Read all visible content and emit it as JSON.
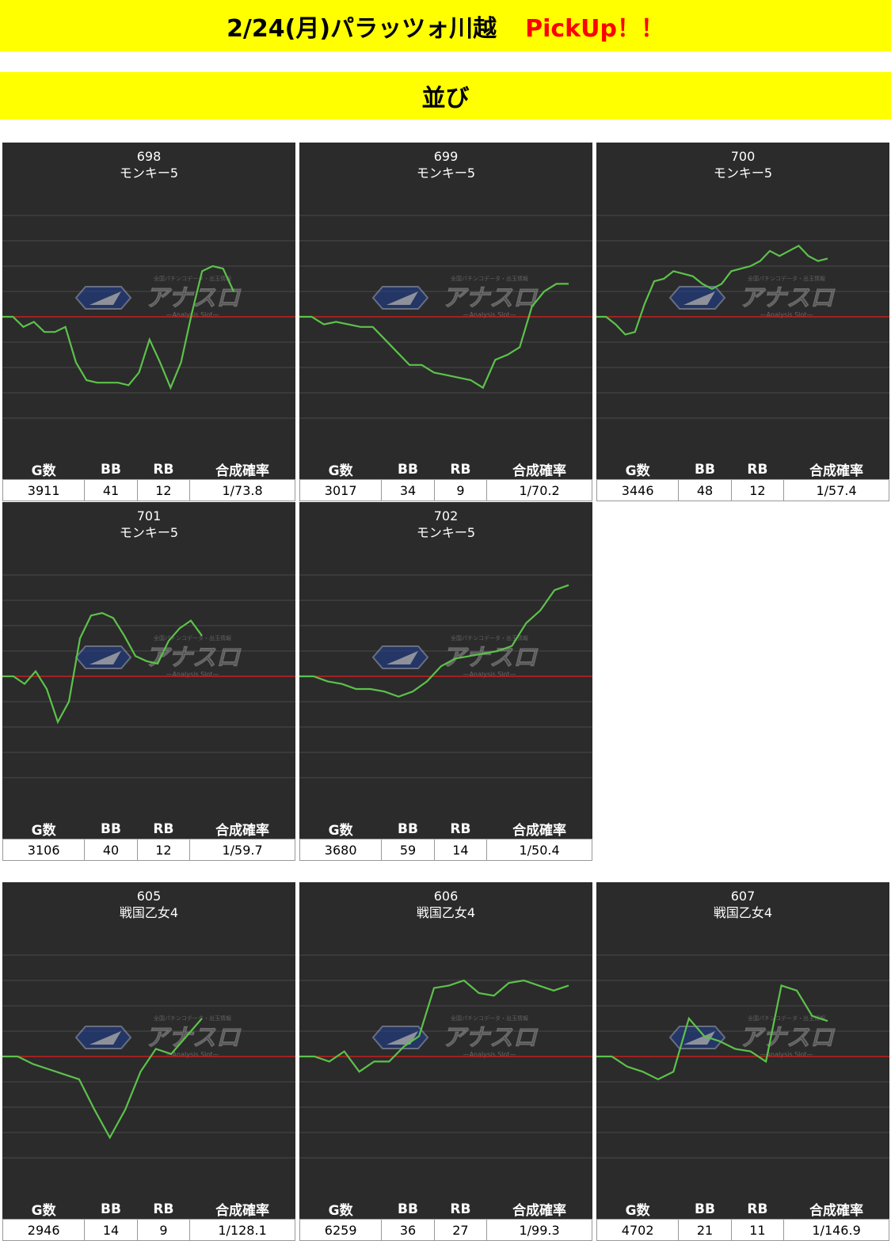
{
  "header": {
    "title": "2/24(月)パラッツォ川越",
    "pickup": "PickUp！！",
    "subtitle": "並び"
  },
  "table_headers": [
    "G数",
    "BB",
    "RB",
    "合成確率"
  ],
  "watermark": {
    "main": "アナスロ",
    "sub": "—Analysis Slot—",
    "top": "全国パチンコデータ・出玉情報"
  },
  "colors": {
    "banner": "#ffff00",
    "pickup": "#ff0000",
    "panel": "#2b2b2b",
    "line": "#5cc24a",
    "baseline": "#c8201e"
  },
  "machines": [
    {
      "num": "698",
      "model": "モンキー5",
      "games": "3911",
      "bb": "41",
      "rb": "12",
      "rate": "1/73.8",
      "chart_data": {
        "type": "line",
        "ylim": [
          -5,
          5
        ],
        "values": [
          0,
          0,
          -0.4,
          -0.2,
          -0.6,
          -0.6,
          -0.4,
          -1.8,
          -2.5,
          -2.6,
          -2.6,
          -2.6,
          -2.7,
          -2.2,
          -0.9,
          -1.8,
          -2.8,
          -1.8,
          0.1,
          1.8,
          2.0,
          1.9,
          1.0
        ]
      }
    },
    {
      "num": "699",
      "model": "モンキー5",
      "games": "3017",
      "bb": "34",
      "rb": "9",
      "rate": "1/70.2",
      "chart_data": {
        "type": "line",
        "ylim": [
          -5,
          5
        ],
        "values": [
          0,
          0,
          -0.3,
          -0.2,
          -0.3,
          -0.4,
          -0.4,
          -0.9,
          -1.4,
          -1.9,
          -1.9,
          -2.2,
          -2.3,
          -2.4,
          -2.5,
          -2.8,
          -1.7,
          -1.5,
          -1.2,
          0.4,
          1.0,
          1.3,
          1.3
        ]
      }
    },
    {
      "num": "700",
      "model": "モンキー5",
      "games": "3446",
      "bb": "48",
      "rb": "12",
      "rate": "1/57.4",
      "chart_data": {
        "type": "line",
        "ylim": [
          -5,
          5
        ],
        "values": [
          0,
          0,
          -0.3,
          -0.7,
          -0.6,
          0.5,
          1.4,
          1.5,
          1.8,
          1.7,
          1.6,
          1.3,
          1.1,
          1.3,
          1.8,
          1.9,
          2.0,
          2.2,
          2.6,
          2.4,
          2.6,
          2.8,
          2.4,
          2.2,
          2.3
        ]
      }
    },
    {
      "num": "701",
      "model": "モンキー5",
      "games": "3106",
      "bb": "40",
      "rb": "12",
      "rate": "1/59.7",
      "chart_data": {
        "type": "line",
        "ylim": [
          -5,
          5
        ],
        "values": [
          0,
          0,
          -0.3,
          0.2,
          -0.5,
          -1.8,
          -1.0,
          1.5,
          2.4,
          2.5,
          2.3,
          1.6,
          0.8,
          0.6,
          0.5,
          1.4,
          1.9,
          2.2,
          1.6
        ]
      }
    },
    {
      "num": "702",
      "model": "モンキー5",
      "games": "3680",
      "bb": "59",
      "rb": "14",
      "rate": "1/50.4",
      "chart_data": {
        "type": "line",
        "ylim": [
          -5,
          5
        ],
        "values": [
          0,
          0,
          -0.2,
          -0.3,
          -0.5,
          -0.5,
          -0.6,
          -0.8,
          -0.6,
          -0.2,
          0.4,
          0.7,
          0.8,
          0.9,
          1.0,
          1.2,
          2.1,
          2.6,
          3.4,
          3.6
        ]
      }
    },
    {
      "num": "605",
      "model": "戦国乙女4",
      "games": "2946",
      "bb": "14",
      "rb": "9",
      "rate": "1/128.1",
      "chart_data": {
        "type": "line",
        "ylim": [
          -5,
          5
        ],
        "values": [
          0,
          0,
          -0.3,
          -0.5,
          -0.7,
          -0.9,
          -2.1,
          -3.2,
          -2.1,
          -0.6,
          0.3,
          0.1,
          0.8,
          1.5
        ]
      }
    },
    {
      "num": "606",
      "model": "戦国乙女4",
      "games": "6259",
      "bb": "36",
      "rb": "27",
      "rate": "1/99.3",
      "chart_data": {
        "type": "line",
        "ylim": [
          -5,
          5
        ],
        "values": [
          0,
          0,
          -0.2,
          0.2,
          -0.6,
          -0.2,
          -0.2,
          0.4,
          0.8,
          2.7,
          2.8,
          3.0,
          2.5,
          2.4,
          2.9,
          3.0,
          2.8,
          2.6,
          2.8
        ]
      }
    },
    {
      "num": "607",
      "model": "戦国乙女4",
      "games": "4702",
      "bb": "21",
      "rb": "11",
      "rate": "1/146.9",
      "chart_data": {
        "type": "line",
        "ylim": [
          -5,
          5
        ],
        "values": [
          0,
          0,
          -0.4,
          -0.6,
          -0.9,
          -0.6,
          1.5,
          0.8,
          0.6,
          0.3,
          0.2,
          -0.2,
          2.8,
          2.6,
          1.6,
          1.4
        ]
      }
    }
  ]
}
